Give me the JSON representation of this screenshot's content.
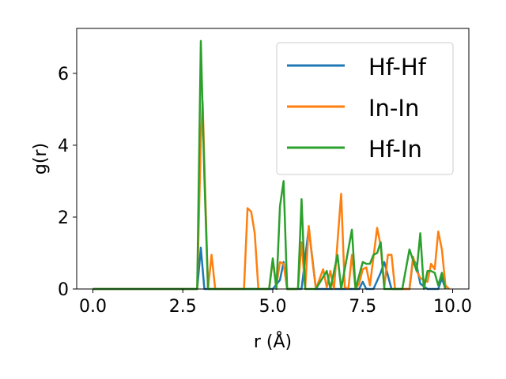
{
  "chart_data": {
    "type": "line",
    "xlabel": "r (Å)",
    "ylabel": "g(r)",
    "xlim": [
      -0.45,
      10.45
    ],
    "ylim": [
      0,
      7.25
    ],
    "xticks": [
      0.0,
      2.5,
      5.0,
      7.5,
      10.0
    ],
    "xtick_labels": [
      "0.0",
      "2.5",
      "5.0",
      "7.5",
      "10.0"
    ],
    "yticks": [
      0,
      2,
      4,
      6
    ],
    "ytick_labels": [
      "0",
      "2",
      "4",
      "6"
    ],
    "grid": false,
    "legend_position": "top-right",
    "series": [
      {
        "name": "Hf-Hf",
        "color": "#1f77b4",
        "points": [
          [
            0,
            0
          ],
          [
            2.9,
            0
          ],
          [
            3.0,
            1.15
          ],
          [
            3.1,
            0
          ],
          [
            5.0,
            0
          ],
          [
            5.2,
            0.25
          ],
          [
            5.3,
            0.75
          ],
          [
            5.4,
            0
          ],
          [
            5.8,
            0
          ],
          [
            6.0,
            1.7
          ],
          [
            6.2,
            0
          ],
          [
            7.4,
            0
          ],
          [
            7.5,
            0.2
          ],
          [
            7.6,
            0
          ],
          [
            7.8,
            0
          ],
          [
            8.0,
            0.45
          ],
          [
            8.1,
            0.75
          ],
          [
            8.3,
            0
          ],
          [
            8.8,
            0
          ],
          [
            8.9,
            0.85
          ],
          [
            9.0,
            0.65
          ],
          [
            9.1,
            0.15
          ],
          [
            9.3,
            0
          ],
          [
            9.6,
            0
          ],
          [
            9.7,
            0.3
          ],
          [
            9.8,
            0
          ]
        ]
      },
      {
        "name": "In-In",
        "color": "#ff7f0e",
        "points": [
          [
            0,
            0
          ],
          [
            2.9,
            0
          ],
          [
            3.0,
            4.15
          ],
          [
            3.05,
            5.2
          ],
          [
            3.2,
            0
          ],
          [
            3.3,
            0.95
          ],
          [
            3.4,
            0
          ],
          [
            4.2,
            0
          ],
          [
            4.3,
            2.25
          ],
          [
            4.4,
            2.15
          ],
          [
            4.5,
            1.55
          ],
          [
            4.6,
            0
          ],
          [
            4.9,
            0
          ],
          [
            5.0,
            0.8
          ],
          [
            5.1,
            0.1
          ],
          [
            5.2,
            0.75
          ],
          [
            5.3,
            0.7
          ],
          [
            5.4,
            0
          ],
          [
            5.7,
            0
          ],
          [
            5.8,
            1.3
          ],
          [
            5.9,
            0
          ],
          [
            6.0,
            1.75
          ],
          [
            6.1,
            0.8
          ],
          [
            6.2,
            0
          ],
          [
            6.4,
            0.55
          ],
          [
            6.5,
            0.05
          ],
          [
            6.6,
            0.5
          ],
          [
            6.7,
            0
          ],
          [
            6.9,
            2.65
          ],
          [
            7.0,
            0.05
          ],
          [
            7.1,
            0
          ],
          [
            7.2,
            0.95
          ],
          [
            7.3,
            0
          ],
          [
            7.4,
            0.15
          ],
          [
            7.5,
            0.55
          ],
          [
            7.6,
            0.6
          ],
          [
            7.7,
            0.1
          ],
          [
            7.9,
            1.7
          ],
          [
            8.0,
            1.2
          ],
          [
            8.1,
            0.05
          ],
          [
            8.2,
            0.95
          ],
          [
            8.3,
            0.95
          ],
          [
            8.4,
            0
          ],
          [
            8.8,
            0
          ],
          [
            8.9,
            0.9
          ],
          [
            9.0,
            0.5
          ],
          [
            9.1,
            0.3
          ],
          [
            9.2,
            0.25
          ],
          [
            9.3,
            0.2
          ],
          [
            9.4,
            0.7
          ],
          [
            9.5,
            0.55
          ],
          [
            9.6,
            1.6
          ],
          [
            9.7,
            1.1
          ],
          [
            9.8,
            0.1
          ],
          [
            9.9,
            0
          ]
        ]
      },
      {
        "name": "Hf-In",
        "color": "#2ca02c",
        "points": [
          [
            0,
            0
          ],
          [
            2.9,
            0
          ],
          [
            3.0,
            6.9
          ],
          [
            3.1,
            3.1
          ],
          [
            3.2,
            0
          ],
          [
            4.9,
            0
          ],
          [
            5.0,
            0.85
          ],
          [
            5.1,
            0
          ],
          [
            5.2,
            2.3
          ],
          [
            5.3,
            3.0
          ],
          [
            5.4,
            0
          ],
          [
            5.7,
            0
          ],
          [
            5.8,
            2.5
          ],
          [
            5.9,
            0
          ],
          [
            6.2,
            0
          ],
          [
            6.5,
            0.5
          ],
          [
            6.6,
            0
          ],
          [
            6.8,
            0.95
          ],
          [
            6.9,
            0
          ],
          [
            7.2,
            1.65
          ],
          [
            7.3,
            0
          ],
          [
            7.5,
            0.75
          ],
          [
            7.6,
            0.7
          ],
          [
            7.7,
            0.7
          ],
          [
            7.8,
            0.95
          ],
          [
            7.9,
            1.0
          ],
          [
            8.0,
            1.3
          ],
          [
            8.1,
            0
          ],
          [
            8.6,
            0
          ],
          [
            8.8,
            1.1
          ],
          [
            8.9,
            0.8
          ],
          [
            9.0,
            0.5
          ],
          [
            9.1,
            1.55
          ],
          [
            9.2,
            0
          ],
          [
            9.3,
            0.5
          ],
          [
            9.4,
            0.5
          ],
          [
            9.5,
            0.45
          ],
          [
            9.6,
            0.1
          ],
          [
            9.7,
            0.45
          ],
          [
            9.8,
            0
          ]
        ]
      }
    ]
  }
}
